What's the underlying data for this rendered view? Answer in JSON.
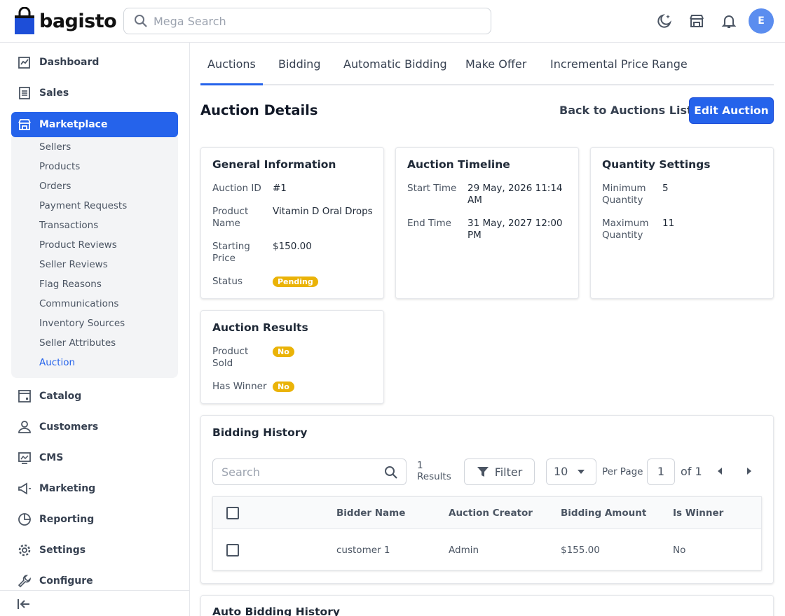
{
  "header": {
    "brand": "bagisto",
    "search_placeholder": "Mega Search",
    "avatar_initial": "E",
    "icons": [
      "theme-toggle-icon",
      "storefront-icon",
      "notification-bell-icon"
    ]
  },
  "sidebar": {
    "items": [
      {
        "label": "Dashboard",
        "icon": "dashboard-icon"
      },
      {
        "label": "Sales",
        "icon": "sales-icon"
      },
      {
        "label": "Marketplace",
        "icon": "store-icon"
      },
      {
        "label": "Catalog",
        "icon": "catalog-icon"
      },
      {
        "label": "Customers",
        "icon": "customers-icon"
      },
      {
        "label": "CMS",
        "icon": "cms-icon"
      },
      {
        "label": "Marketing",
        "icon": "megaphone-icon"
      },
      {
        "label": "Reporting",
        "icon": "pie-chart-icon"
      },
      {
        "label": "Settings",
        "icon": "gear-icon"
      },
      {
        "label": "Configure",
        "icon": "wrench-icon"
      }
    ],
    "submenu": [
      "Sellers",
      "Products",
      "Orders",
      "Payment Requests",
      "Transactions",
      "Product Reviews",
      "Seller Reviews",
      "Flag Reasons",
      "Communications",
      "Inventory Sources",
      "Seller Attributes",
      "Auction"
    ],
    "active_submenu": "Auction"
  },
  "tabs": [
    "Auctions",
    "Bidding",
    "Automatic Bidding",
    "Make Offer",
    "Incremental Price Range"
  ],
  "page": {
    "title": "Auction Details",
    "back_label": "Back to Auctions List",
    "edit_label": "Edit Auction"
  },
  "general": {
    "title": "General Information",
    "auction_id_label": "Auction ID",
    "auction_id": "#1",
    "product_name_label_1": "Product",
    "product_name_label_2": "Name",
    "product_name": "Vitamin D Oral Drops",
    "starting_price_label_1": "Starting",
    "starting_price_label_2": "Price",
    "starting_price": "$150.00",
    "status_label": "Status",
    "status": "Pending"
  },
  "timeline": {
    "title": "Auction Timeline",
    "start_label": "Start Time",
    "start_1": "29 May, 2026 11:14",
    "start_2": "AM",
    "end_label": "End Time",
    "end_1": "31 May, 2027 12:00",
    "end_2": "PM"
  },
  "quantity": {
    "title": "Quantity Settings",
    "min_label_1": "Minimum",
    "min_label_2": "Quantity",
    "min": "5",
    "max_label_1": "Maximum",
    "max_label_2": "Quantity",
    "max": "11"
  },
  "results": {
    "title": "Auction Results",
    "sold_label_1": "Product",
    "sold_label_2": "Sold",
    "sold": "No",
    "winner_label": "Has Winner",
    "winner": "No"
  },
  "bidding_history": {
    "title": "Bidding History",
    "search_placeholder": "Search",
    "results_count": "1",
    "results_label": "Results",
    "filter_label": "Filter",
    "per_page_value": "10",
    "per_page_label": "Per Page",
    "page_current": "1",
    "page_of": "of 1",
    "columns": [
      "Bidder Name",
      "Auction Creator",
      "Bidding Amount",
      "Is Winner"
    ],
    "rows": [
      {
        "bidder": "customer 1",
        "creator": "Admin",
        "amount": "$155.00",
        "winner": "No"
      }
    ]
  },
  "auto_bidding": {
    "title": "Auto Bidding History"
  },
  "colors": {
    "primary": "#2563eb",
    "badge": "#eab308",
    "avatar": "#5b8def"
  }
}
